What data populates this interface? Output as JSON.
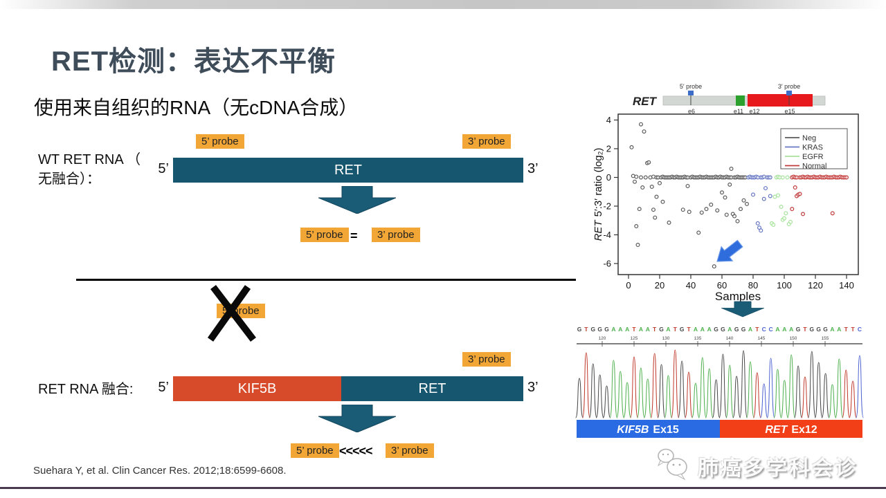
{
  "slide": {
    "title": "RET检测：表达不平衡",
    "subtitle": "使用来自组织的RNA（无cDNA合成）",
    "citation": "Suehara Y, et al. Clin Cancer Res. 2012;18:6599-6608.",
    "watermark": "肺癌多学科会诊"
  },
  "wt_section": {
    "label_line1": "WT RET RNA （",
    "label_line2": "无融合）：",
    "probe5_label": "5’ probe",
    "probe3_label": "3’ probe",
    "five_prime": "5’",
    "three_prime": "3’",
    "bar_label": "RET",
    "result_left": "5’ probe",
    "result_op": "=",
    "result_right": "3’ probe"
  },
  "fusion_section": {
    "label": "RET RNA 融合:",
    "crossed_probe_label": "5’ probe",
    "probe3_label": "3’ probe",
    "five_prime": "5’",
    "three_prime": "3’",
    "bar_left_label": "KIF5B",
    "bar_right_label": "RET",
    "result_left": "5’ probe",
    "result_op": "<<<<<",
    "result_right": "3’ probe"
  },
  "figure": {
    "gene_track": {
      "gene": "RET",
      "probe5_label": "5′ probe",
      "probe3_label": "3′ probe",
      "exons": [
        "e6",
        "e11",
        "e12",
        "e15"
      ]
    },
    "chromatogram": {
      "sequence": "GTGGGAAATAATGATGTAAAGGAGGATCCAAAGTGGGAATTC",
      "ruler": [
        "120",
        "125",
        "130",
        "135",
        "140",
        "145",
        "150",
        "155"
      ],
      "base_colors": {
        "A": "#4db04d",
        "C": "#4f63d2",
        "G": "#474747",
        "T": "#c0392b"
      },
      "bar_left": {
        "gene": "KIF5B",
        "exon": "Ex15",
        "color": "#2a6ae3"
      },
      "bar_right": {
        "gene": "RET",
        "exon": "Ex12",
        "color": "#f23f17"
      }
    }
  },
  "chart_data": {
    "type": "scatter",
    "xlabel": "Samples",
    "ylabel": "RET 5′:3′ ratio (log₂)",
    "ylabel_gene": "RET",
    "ylabel_rest": "5′:3′ ratio (log₂)",
    "xlim": [
      -7,
      148
    ],
    "ylim": [
      -6.9,
      4.4
    ],
    "xticks": [
      0,
      20,
      40,
      60,
      80,
      100,
      120,
      140
    ],
    "yticks": [
      4,
      2,
      0,
      -2,
      -4,
      -6
    ],
    "grid": false,
    "legend_position": "top-right",
    "series": [
      {
        "name": "Neg",
        "color": "#5a5a5a",
        "points": [
          [
            2,
            2.1
          ],
          [
            3,
            0.1
          ],
          [
            4,
            -0.3
          ],
          [
            5,
            -3.4
          ],
          [
            5,
            0.05
          ],
          [
            6,
            -4.7
          ],
          [
            7,
            -2.2
          ],
          [
            8,
            3.7
          ],
          [
            8,
            0
          ],
          [
            9,
            -0.7
          ],
          [
            10,
            3.2
          ],
          [
            11,
            0
          ],
          [
            12,
            1.0
          ],
          [
            13,
            1.05
          ],
          [
            14,
            0
          ],
          [
            15,
            -0.65
          ],
          [
            16,
            -2.25
          ],
          [
            16,
            0.05
          ],
          [
            17,
            -2.8
          ],
          [
            18,
            -1.35
          ],
          [
            18,
            0
          ],
          [
            19,
            0
          ],
          [
            20,
            -0.4
          ],
          [
            21,
            0
          ],
          [
            22,
            -1.7
          ],
          [
            22,
            0.05
          ],
          [
            23,
            0
          ],
          [
            24,
            0
          ],
          [
            25,
            0
          ],
          [
            26,
            -3.15
          ],
          [
            26,
            0
          ],
          [
            27,
            0
          ],
          [
            28,
            0.05
          ],
          [
            29,
            0
          ],
          [
            30,
            0
          ],
          [
            31,
            0.05
          ],
          [
            32,
            0
          ],
          [
            33,
            0
          ],
          [
            34,
            0
          ],
          [
            35,
            -2.25
          ],
          [
            35,
            0
          ],
          [
            36,
            0.05
          ],
          [
            37,
            0
          ],
          [
            38,
            -0.6
          ],
          [
            38,
            0
          ],
          [
            39,
            -2.4
          ],
          [
            40,
            0
          ],
          [
            41,
            0.05
          ],
          [
            42,
            0
          ],
          [
            43,
            0
          ],
          [
            44,
            0
          ],
          [
            45,
            -3.85
          ],
          [
            45,
            0
          ],
          [
            46,
            0.05
          ],
          [
            47,
            -2.45
          ],
          [
            47,
            0
          ],
          [
            48,
            0
          ],
          [
            49,
            0
          ],
          [
            50,
            -2.2
          ],
          [
            50,
            0.05
          ],
          [
            51,
            0
          ],
          [
            52,
            0
          ],
          [
            53,
            -1.9
          ],
          [
            53,
            0
          ],
          [
            54,
            0
          ],
          [
            55,
            -6.2
          ],
          [
            55,
            0
          ],
          [
            56,
            0.05
          ],
          [
            57,
            -2.3
          ],
          [
            57,
            0
          ],
          [
            58,
            0
          ],
          [
            59,
            0.05
          ],
          [
            60,
            -1.05
          ],
          [
            60,
            0
          ],
          [
            61,
            0
          ],
          [
            62,
            -1.4
          ],
          [
            62,
            0
          ],
          [
            63,
            -2.6
          ],
          [
            63,
            0.05
          ],
          [
            64,
            0
          ],
          [
            65,
            -0.5
          ],
          [
            65,
            0
          ],
          [
            66,
            0.6
          ],
          [
            66,
            0
          ],
          [
            67,
            -2.55
          ],
          [
            68,
            -2.7
          ],
          [
            68,
            0
          ],
          [
            69,
            0
          ],
          [
            70,
            -3.05
          ],
          [
            70,
            0.05
          ],
          [
            71,
            0
          ],
          [
            72,
            -2.2
          ],
          [
            72,
            0
          ],
          [
            73,
            0
          ],
          [
            74,
            -1.6
          ],
          [
            74,
            0
          ],
          [
            75,
            0
          ],
          [
            76,
            -1.85
          ]
        ]
      },
      {
        "name": "KRAS",
        "color": "#6677c4",
        "points": [
          [
            77,
            0
          ],
          [
            78,
            0.05
          ],
          [
            79,
            0
          ],
          [
            80,
            -1.2
          ],
          [
            80,
            0
          ],
          [
            81,
            0
          ],
          [
            82,
            0.05
          ],
          [
            83,
            -3.2
          ],
          [
            83,
            0
          ],
          [
            84,
            -3.5
          ],
          [
            85,
            -3.7
          ],
          [
            85,
            0
          ],
          [
            86,
            0
          ],
          [
            87,
            -1.5
          ],
          [
            87,
            0.05
          ],
          [
            88,
            -0.75
          ],
          [
            89,
            0
          ],
          [
            90,
            0
          ],
          [
            91,
            -1.3
          ],
          [
            91,
            0
          ]
        ]
      },
      {
        "name": "EGFR",
        "color": "#a6e39b",
        "points": [
          [
            92,
            -3.2
          ],
          [
            93,
            -3.3
          ],
          [
            94,
            -1.35
          ],
          [
            95,
            0
          ],
          [
            96,
            -1.25
          ],
          [
            96,
            0.05
          ],
          [
            97,
            0
          ],
          [
            98,
            -2.05
          ],
          [
            99,
            -2.95
          ],
          [
            99,
            0
          ],
          [
            100,
            -2.85
          ],
          [
            101,
            -2.5
          ],
          [
            102,
            0
          ],
          [
            103,
            -3.25
          ],
          [
            104,
            -3.1
          ]
        ]
      },
      {
        "name": "Normal",
        "color": "#c23b3b",
        "points": [
          [
            105,
            -2.2
          ],
          [
            105,
            0
          ],
          [
            106,
            0.05
          ],
          [
            107,
            -0.7
          ],
          [
            107,
            0
          ],
          [
            108,
            -1.3
          ],
          [
            108,
            0
          ],
          [
            109,
            -1.2
          ],
          [
            110,
            -1.15
          ],
          [
            110,
            0
          ],
          [
            111,
            0
          ],
          [
            112,
            -2.55
          ],
          [
            112,
            0.05
          ],
          [
            113,
            0
          ],
          [
            114,
            0
          ],
          [
            115,
            0.05
          ],
          [
            116,
            0
          ],
          [
            117,
            0
          ],
          [
            118,
            0
          ],
          [
            119,
            0.05
          ],
          [
            120,
            0
          ],
          [
            121,
            0
          ],
          [
            122,
            0
          ],
          [
            123,
            0.05
          ],
          [
            124,
            0
          ],
          [
            125,
            0
          ],
          [
            126,
            0
          ],
          [
            127,
            0.05
          ],
          [
            128,
            0
          ],
          [
            129,
            0
          ],
          [
            130,
            0
          ],
          [
            131,
            -2.5
          ],
          [
            131,
            0
          ],
          [
            132,
            0.05
          ],
          [
            133,
            0
          ],
          [
            134,
            0
          ],
          [
            135,
            0
          ],
          [
            136,
            0.05
          ],
          [
            137,
            0
          ],
          [
            138,
            0
          ],
          [
            139,
            0
          ],
          [
            140,
            0
          ]
        ]
      }
    ],
    "annotation": {
      "type": "arrow",
      "target": [
        55,
        -6.2
      ],
      "color": "#2e6ddb"
    }
  }
}
